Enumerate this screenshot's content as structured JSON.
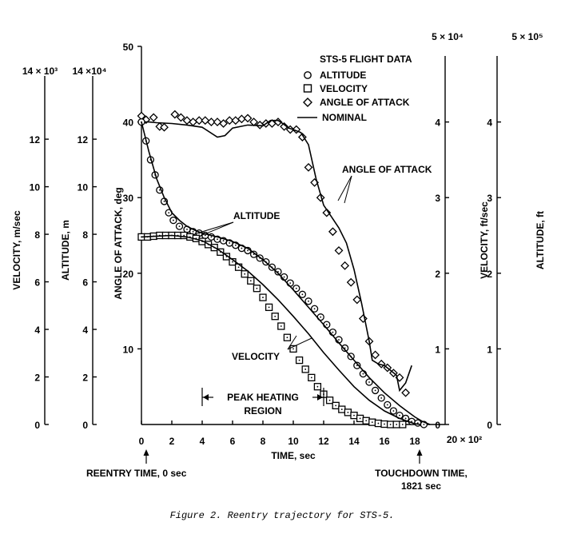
{
  "chart_data": {
    "type": "scatter",
    "caption": "Figure 2.  Reentry trajectory for STS-5.",
    "legend": {
      "title": "STS-5 FLIGHT DATA",
      "placement": "top-right",
      "entries": [
        "ALTITUDE",
        "VELOCITY",
        "ANGLE OF ATTACK",
        "NOMINAL"
      ]
    },
    "x_axis": {
      "label": "TIME, sec",
      "multiplier": "20 × 10²",
      "range": [
        0,
        20
      ],
      "ticks": [
        "0",
        "2",
        "4",
        "6",
        "8",
        "10",
        "12",
        "14",
        "16",
        "18"
      ]
    },
    "axes": {
      "aoa": {
        "label": "ANGLE OF ATTACK, deg",
        "range": [
          0,
          50
        ],
        "ticks": [
          "10",
          "20",
          "30",
          "40",
          "50"
        ]
      },
      "vel_ft": {
        "label": "VELOCITY, ft/sec",
        "multiplier": "5 × 10⁴",
        "range": [
          0,
          5
        ],
        "ticks": [
          "0",
          "1",
          "2",
          "3",
          "4"
        ]
      },
      "alt_ft": {
        "label": "ALTITUDE, ft",
        "multiplier": "5 × 10⁵",
        "range": [
          0,
          5
        ],
        "ticks": [
          "0",
          "1",
          "2",
          "3",
          "4"
        ]
      },
      "alt_m": {
        "label": "ALTITUDE, m",
        "multiplier": "14 ×10⁴",
        "range": [
          0,
          14
        ],
        "ticks": [
          "0",
          "2",
          "4",
          "6",
          "8",
          "10",
          "12"
        ]
      },
      "vel_ms": {
        "label": "VELOCITY, m/sec",
        "multiplier": "14 × 10³",
        "range": [
          0,
          14
        ],
        "ticks": [
          "0",
          "2",
          "4",
          "6",
          "8",
          "10",
          "12"
        ]
      }
    },
    "annotations": {
      "aoa": "ANGLE OF ATTACK",
      "altitude": "ALTITUDE",
      "velocity": "VELOCITY",
      "peak_heating": [
        "PEAK HEATING",
        "REGION"
      ],
      "reentry": "REENTRY TIME, 0 sec",
      "touchdown": [
        "TOUCHDOWN TIME,",
        "1821 sec"
      ]
    },
    "peak_heating_range": [
      4,
      12
    ],
    "series": [
      {
        "name": "ANGLE OF ATTACK",
        "kind": "flight",
        "marker": "diamond",
        "axis": "aoa",
        "x": [
          0,
          0.3,
          0.8,
          1.2,
          1.5,
          2.2,
          2.6,
          3.0,
          3.4,
          3.8,
          4.2,
          4.6,
          5.0,
          5.4,
          5.8,
          6.2,
          6.6,
          7.0,
          7.4,
          7.8,
          8.2,
          8.6,
          9.0,
          9.4,
          9.8,
          10.2,
          10.6,
          11.0,
          11.4,
          11.8,
          12.2,
          12.6,
          13.0,
          13.4,
          13.8,
          14.2,
          14.6,
          15.0,
          15.4,
          15.8,
          16.2,
          16.6,
          17.0,
          17.4
        ],
        "y": [
          40.8,
          40.3,
          40.6,
          39.4,
          39.3,
          41.0,
          40.6,
          40.2,
          40.0,
          40.2,
          40.2,
          40.0,
          40.0,
          39.8,
          40.2,
          40.2,
          40.4,
          40.5,
          40.0,
          39.6,
          39.8,
          39.8,
          40.0,
          39.4,
          39.0,
          39.0,
          38.0,
          34.0,
          32.0,
          30.0,
          28.0,
          25.5,
          23.0,
          21.0,
          18.8,
          16.5,
          14.0,
          11.0,
          9.2,
          8.0,
          7.5,
          6.8,
          6.2,
          4.2
        ]
      },
      {
        "name": "ANGLE OF ATTACK",
        "kind": "nominal",
        "axis": "aoa",
        "x": [
          0,
          0.5,
          1.0,
          2.0,
          3.0,
          4.0,
          5.0,
          5.5,
          6.0,
          7.0,
          8.0,
          8.5,
          9.0,
          9.3,
          9.7,
          10.0,
          10.5,
          11.0,
          11.5,
          12.0,
          12.5,
          13.0,
          13.5,
          14.0,
          14.5,
          15.0,
          15.2,
          15.6,
          16.0,
          16.5,
          16.8,
          17.0,
          17.4,
          17.8
        ],
        "y": [
          40.0,
          40.0,
          39.9,
          39.8,
          39.6,
          39.3,
          38.0,
          38.2,
          39.2,
          39.6,
          39.5,
          40.2,
          40.2,
          39.8,
          39.2,
          39.0,
          38.6,
          37.0,
          32.5,
          29.0,
          27.5,
          26.0,
          24.0,
          20.5,
          16.0,
          11.0,
          8.5,
          8.0,
          7.8,
          7.0,
          6.5,
          4.5,
          5.5,
          7.8
        ]
      },
      {
        "name": "ALTITUDE",
        "kind": "flight",
        "marker": "circle",
        "axis": "aoa",
        "x": [
          0,
          0.3,
          0.6,
          0.9,
          1.2,
          1.5,
          1.8,
          2.1,
          2.5,
          3.0,
          3.4,
          3.8,
          4.2,
          4.6,
          5.0,
          5.4,
          5.8,
          6.2,
          6.6,
          7.0,
          7.4,
          7.8,
          8.2,
          8.6,
          9.0,
          9.4,
          9.8,
          10.2,
          10.6,
          11.0,
          11.4,
          11.8,
          12.2,
          12.6,
          13.0,
          13.4,
          13.8,
          14.2,
          14.6,
          15.0,
          15.4,
          15.8,
          16.2,
          16.6,
          17.0,
          17.4,
          17.8,
          18.2,
          18.6
        ],
        "y": [
          40.0,
          37.5,
          35.0,
          33.0,
          31.0,
          29.5,
          28.0,
          27.0,
          26.2,
          25.8,
          25.5,
          25.3,
          25.0,
          24.8,
          24.5,
          24.3,
          24.0,
          23.7,
          23.3,
          23.0,
          22.5,
          22.0,
          21.5,
          20.8,
          20.2,
          19.5,
          18.7,
          18.0,
          17.2,
          16.3,
          15.3,
          14.2,
          13.2,
          12.2,
          11.2,
          10.1,
          9.0,
          7.8,
          6.7,
          5.6,
          4.5,
          3.5,
          2.6,
          1.8,
          1.2,
          0.8,
          0.4,
          0.2,
          0
        ]
      },
      {
        "name": "ALTITUDE",
        "kind": "nominal",
        "axis": "aoa",
        "x": [
          0,
          0.5,
          1.0,
          1.5,
          2.0,
          2.5,
          3.0,
          3.5,
          4.0,
          5.0,
          6.0,
          7.0,
          8.0,
          9.0,
          10.0,
          11.0,
          12.0,
          13.0,
          14.0,
          15.0,
          16.0,
          17.0,
          18.0,
          18.5,
          19.0
        ],
        "y": [
          40.0,
          36.0,
          32.5,
          30.0,
          28.0,
          27.0,
          26.2,
          25.7,
          25.3,
          24.8,
          24.2,
          23.3,
          21.8,
          20.0,
          17.8,
          15.5,
          13.2,
          10.8,
          8.5,
          6.2,
          4.2,
          2.5,
          1.0,
          0.4,
          0
        ]
      },
      {
        "name": "VELOCITY",
        "kind": "flight",
        "marker": "square",
        "axis": "aoa",
        "x": [
          0,
          0.4,
          0.8,
          1.2,
          1.6,
          2.0,
          2.4,
          2.8,
          3.2,
          3.6,
          4.0,
          4.4,
          4.8,
          5.2,
          5.6,
          6.0,
          6.4,
          6.8,
          7.2,
          7.6,
          8.0,
          8.4,
          8.8,
          9.2,
          9.6,
          10.0,
          10.4,
          10.8,
          11.2,
          11.6,
          12.0,
          12.4,
          12.8,
          13.2,
          13.6,
          14.0,
          14.4,
          14.8,
          15.2,
          15.6,
          16.0,
          16.4,
          16.8,
          17.2
        ],
        "y": [
          24.8,
          24.8,
          24.9,
          25.0,
          25.0,
          25.0,
          25.0,
          25.0,
          24.8,
          24.6,
          24.2,
          23.8,
          23.4,
          22.8,
          22.2,
          21.5,
          20.8,
          19.9,
          19.0,
          18.0,
          16.8,
          15.5,
          14.3,
          13.0,
          11.5,
          10.0,
          8.5,
          7.3,
          6.2,
          5.0,
          4.0,
          3.2,
          2.5,
          2.0,
          1.6,
          1.2,
          0.8,
          0.5,
          0.3,
          0.15,
          0.05,
          0,
          0,
          0
        ]
      },
      {
        "name": "VELOCITY",
        "kind": "nominal",
        "axis": "aoa",
        "x": [
          0,
          1.0,
          2.0,
          3.0,
          4.0,
          5.0,
          6.0,
          7.0,
          8.0,
          9.0,
          10.0,
          11.0,
          12.0,
          13.0,
          14.0,
          15.0,
          16.0,
          17.0,
          18.0,
          18.4
        ],
        "y": [
          24.8,
          24.9,
          25.0,
          24.8,
          24.3,
          23.2,
          21.8,
          20.3,
          18.5,
          16.5,
          14.3,
          12.0,
          9.5,
          7.2,
          5.0,
          3.2,
          1.8,
          0.8,
          0.1,
          0
        ]
      }
    ]
  }
}
